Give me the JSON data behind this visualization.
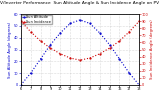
{
  "title": "Solar PV/Inverter Performance  Sun Altitude Angle & Sun Incidence Angle on PV Panels",
  "ylabel_left": "Sun Altitude Angle (degrees)",
  "ylabel_right": "Sun Incidence Angle (degrees)",
  "x_hours": [
    6,
    7,
    8,
    9,
    10,
    11,
    12,
    13,
    14,
    15,
    16,
    17,
    18
  ],
  "sun_altitude": [
    0,
    10,
    22,
    34,
    44,
    52,
    55,
    52,
    44,
    34,
    22,
    10,
    0
  ],
  "sun_incidence": [
    90,
    75,
    62,
    52,
    44,
    38,
    35,
    38,
    44,
    52,
    62,
    75,
    90
  ],
  "altitude_color": "#0000cc",
  "incidence_color": "#cc0000",
  "bg_color": "#ffffff",
  "plot_bg": "#ffffff",
  "grid_color": "#bbbbbb",
  "y_left_min": 0,
  "y_left_max": 60,
  "y_right_min": 0,
  "y_right_max": 100,
  "x_min": 6,
  "x_max": 18,
  "legend_altitude": "Sun Altitude",
  "legend_incidence": "Sun Incidence",
  "title_fontsize": 3.2,
  "label_fontsize": 2.8,
  "tick_fontsize": 2.5,
  "legend_fontsize": 2.5
}
